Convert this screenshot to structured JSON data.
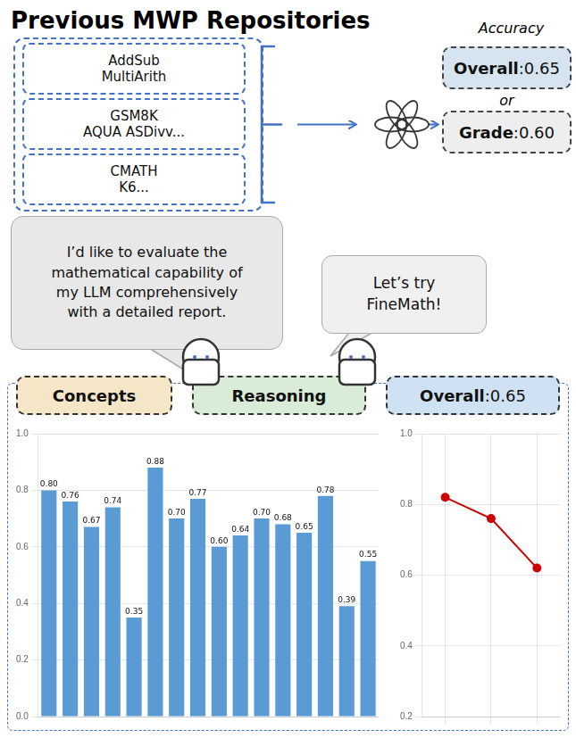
{
  "chart_data": [
    {
      "type": "bar",
      "title": "Previous MWP Repositories",
      "annotations": [
        "AddSub\nMultiArith",
        "GSM8K\nAQUA ASDivv...",
        "CMATH\nK6...",
        "Accuracy",
        "Overall",
        ":0.65",
        "or",
        "Grade",
        ":0.60",
        "I’d like to evaluate the\nmathematical capability of\nmy LLM comprehensively\nwith a detailed report.",
        "Let’s try\nFineMath!",
        "Concepts",
        "Reasoning",
        "Overall",
        ":0.65"
      ],
      "categories": [
        null,
        null,
        null,
        null,
        null,
        null,
        null,
        null,
        null,
        null,
        null,
        null,
        null,
        null,
        null,
        null
      ],
      "values": [
        0.8,
        0.76,
        0.67,
        0.74,
        0.35,
        0.88,
        0.7,
        0.77,
        0.6,
        0.64,
        0.7,
        0.68,
        0.65,
        0.78,
        0.39,
        0.55
      ],
      "value_labels": [
        "0.80",
        "0.76",
        "0.67",
        "0.74",
        "0.35",
        "0.88",
        "0.70",
        "0.77",
        "0.60",
        "0.64",
        "0.70",
        "0.68",
        "0.65",
        "0.78",
        "0.39",
        "0.55"
      ],
      "color": "#5b9bd5",
      "ylim": [
        0,
        1.0
      ],
      "yticks": [
        {
          "value": 0,
          "label": "0.0"
        },
        0.2,
        0.4,
        0.6,
        0.8,
        {
          "value": 1.0,
          "label": "1.0"
        }
      ],
      "grid": "y",
      "data_labels": true,
      "tick_labels": "y"
    },
    {
      "type": "line",
      "categories": [
        null,
        null,
        null
      ],
      "values": [
        0.82,
        0.76,
        0.62
      ],
      "color": "#cc0000",
      "marker": "circle",
      "ylim": [
        0.2,
        1.0
      ],
      "yticks": [
        0.2,
        0.4,
        0.6,
        0.8,
        {
          "value": 1.0,
          "label": "1.0"
        }
      ],
      "grid": true,
      "tick_labels": "y"
    }
  ]
}
